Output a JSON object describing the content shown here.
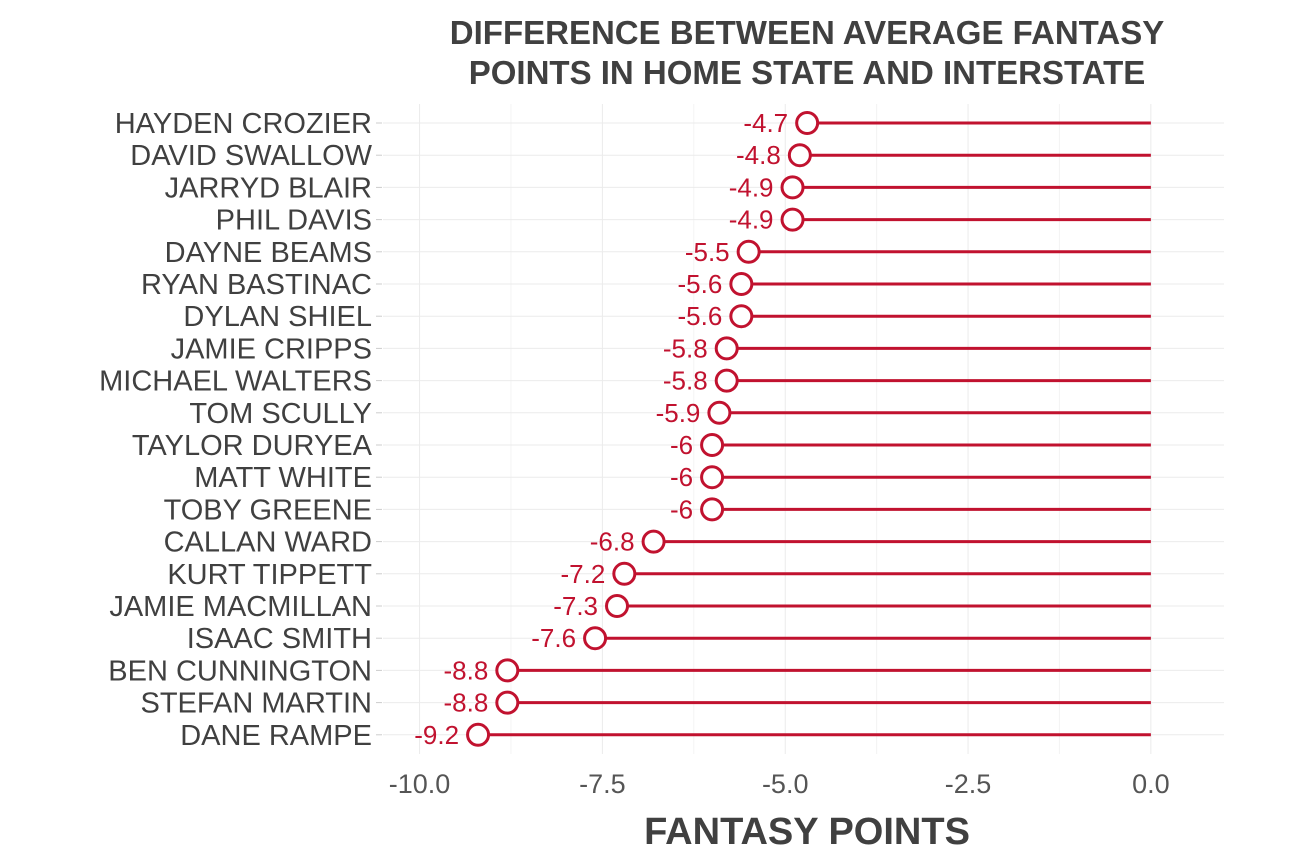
{
  "chart_data": {
    "type": "lollipop",
    "title_lines": [
      "DIFFERENCE BETWEEN AVERAGE FANTASY",
      "POINTS IN HOME STATE AND INTERSTATE"
    ],
    "xlabel": "FANTASY POINTS",
    "ylabel": "",
    "xlim": [
      -10.5,
      1.0
    ],
    "xticks": [
      -10.0,
      -7.5,
      -5.0,
      -2.5,
      0.0
    ],
    "xtick_labels": [
      "-10.0",
      "-7.5",
      "-5.0",
      "-2.5",
      "0.0"
    ],
    "grid": true,
    "legend": "none",
    "color": "#c1122f",
    "categories": [
      "HAYDEN CROZIER",
      "DAVID SWALLOW",
      "JARRYD BLAIR",
      "PHIL DAVIS",
      "DAYNE BEAMS",
      "RYAN BASTINAC",
      "DYLAN SHIEL",
      "JAMIE CRIPPS",
      "MICHAEL WALTERS",
      "TOM SCULLY",
      "TAYLOR DURYEA",
      "MATT WHITE",
      "TOBY GREENE",
      "CALLAN WARD",
      "KURT TIPPETT",
      "JAMIE MACMILLAN",
      "ISAAC SMITH",
      "BEN CUNNINGTON",
      "STEFAN MARTIN",
      "DANE RAMPE"
    ],
    "values": [
      -4.7,
      -4.8,
      -4.9,
      -4.9,
      -5.5,
      -5.6,
      -5.6,
      -5.8,
      -5.8,
      -5.9,
      -6,
      -6,
      -6,
      -6.8,
      -7.2,
      -7.3,
      -7.6,
      -8.8,
      -8.8,
      -9.2
    ],
    "value_labels": [
      "-4.7",
      "-4.8",
      "-4.9",
      "-4.9",
      "-5.5",
      "-5.6",
      "-5.6",
      "-5.8",
      "-5.8",
      "-5.9",
      "-6",
      "-6",
      "-6",
      "-6.8",
      "-7.2",
      "-7.3",
      "-7.6",
      "-8.8",
      "-8.8",
      "-9.2"
    ]
  }
}
